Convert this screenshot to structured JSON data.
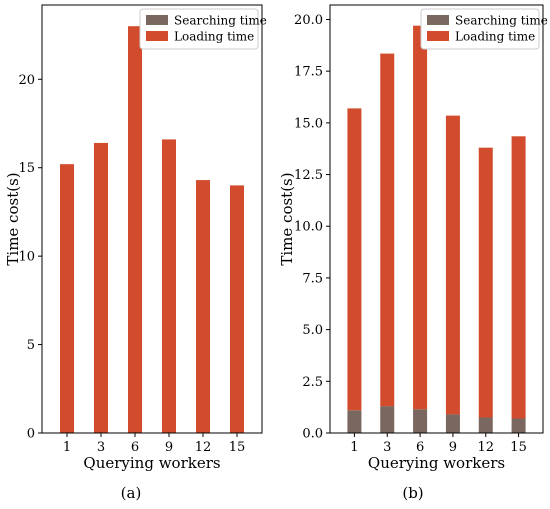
{
  "chart_data": [
    {
      "panel_label": "(a)",
      "type": "bar",
      "stacked": true,
      "categories": [
        "1",
        "3",
        "6",
        "9",
        "12",
        "15"
      ],
      "series": [
        {
          "name": "Searching time",
          "values": [
            0.0,
            0.0,
            0.0,
            0.0,
            0.0,
            0.0
          ],
          "color": "#7a675f"
        },
        {
          "name": "Loading time",
          "values": [
            15.2,
            16.4,
            23.0,
            16.6,
            14.3,
            14.0
          ],
          "color": "#d14b2c"
        }
      ],
      "xlabel": "Querying workers",
      "ylabel": "Time cost(s)",
      "ylim": [
        0,
        24.2
      ],
      "yticks": [
        0,
        5,
        10,
        15,
        20
      ],
      "ytick_labels": [
        "0",
        "5",
        "10",
        "15",
        "20"
      ],
      "legend_position": "top-right",
      "grid": false
    },
    {
      "panel_label": "(b)",
      "type": "bar",
      "stacked": true,
      "categories": [
        "1",
        "3",
        "6",
        "9",
        "12",
        "15"
      ],
      "series": [
        {
          "name": "Searching time",
          "values": [
            1.1,
            1.3,
            1.15,
            0.9,
            0.75,
            0.7
          ],
          "color": "#7a675f"
        },
        {
          "name": "Loading time",
          "values": [
            14.6,
            17.05,
            18.55,
            14.45,
            13.05,
            13.65
          ],
          "color": "#d14b2c"
        }
      ],
      "xlabel": "Querying workers",
      "ylabel": "Time cost(s)",
      "ylim": [
        0,
        20.7
      ],
      "yticks": [
        0,
        2.5,
        5,
        7.5,
        10,
        12.5,
        15,
        17.5,
        20
      ],
      "ytick_labels": [
        "0.0",
        "2.5",
        "5.0",
        "7.5",
        "10.0",
        "12.5",
        "15.0",
        "17.5",
        "20.0"
      ],
      "legend_position": "top-right",
      "grid": false
    }
  ]
}
